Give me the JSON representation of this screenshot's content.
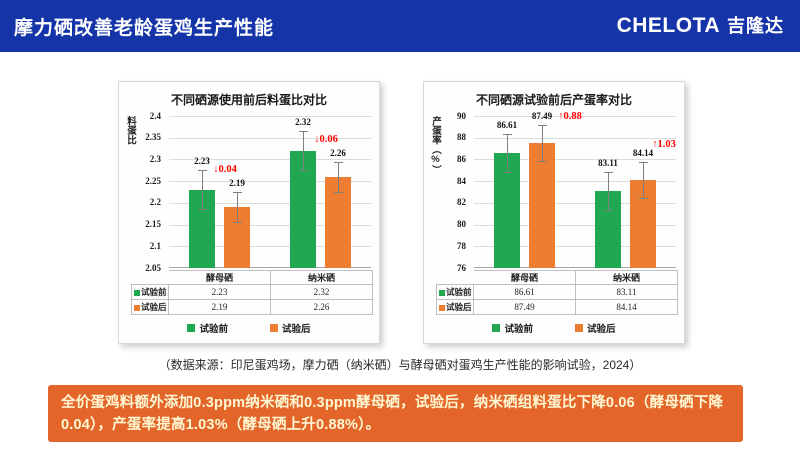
{
  "header": {
    "title": "摩力硒改善老龄蛋鸡生产性能",
    "logo_en": "CHELOTA",
    "logo_cn": "吉隆达"
  },
  "colors": {
    "header_bg": "#1434A8",
    "green": "#1FA84F",
    "orange": "#ED7D31",
    "red": "#FF0000",
    "banner_bg": "#E4652A",
    "banner_text": "#FFF8D2"
  },
  "chart_data": [
    {
      "type": "bar",
      "title": "不同硒源使用前后料蛋比对比",
      "ylabel": "料蛋比",
      "xlabel": "",
      "categories": [
        "酵母硒",
        "纳米硒"
      ],
      "series": [
        {
          "name": "试验前",
          "color": "#1FA84F",
          "values": [
            2.23,
            2.32
          ],
          "errors": [
            0.045,
            0.045
          ]
        },
        {
          "name": "试验后",
          "color": "#ED7D31",
          "values": [
            2.19,
            2.26
          ],
          "errors": [
            0.035,
            0.035
          ]
        }
      ],
      "ylim": [
        2.05,
        2.4
      ],
      "ytick_step": 0.05,
      "grid": true,
      "legend_position": "bottom",
      "annotations": [
        {
          "category_index": 0,
          "text": "↓0.04"
        },
        {
          "category_index": 1,
          "text": "↓0.06"
        }
      ]
    },
    {
      "type": "bar",
      "title": "不同硒源试验前后产蛋率对比",
      "ylabel": "产蛋率（%）",
      "xlabel": "",
      "categories": [
        "酵母硒",
        "纳米硒"
      ],
      "series": [
        {
          "name": "试验前",
          "color": "#1FA84F",
          "values": [
            86.61,
            83.11
          ],
          "errors": [
            1.75,
            1.75
          ]
        },
        {
          "name": "试验后",
          "color": "#ED7D31",
          "values": [
            87.49,
            84.14
          ],
          "errors": [
            1.65,
            1.65
          ]
        }
      ],
      "ylim": [
        76,
        90
      ],
      "ytick_step": 2,
      "grid": true,
      "legend_position": "bottom",
      "annotations": [
        {
          "category_index": 0,
          "text": "↑0.88"
        },
        {
          "category_index": 1,
          "text": "↑1.03"
        }
      ]
    }
  ],
  "source_note": "（数据来源：印尼蛋鸡场，摩力硒（纳米硒）与酵母硒对蛋鸡生产性能的影响试验，2024）",
  "banner": {
    "text": "全价蛋鸡料额外添加0.3ppm纳米硒和0.3ppm酵母硒，试验后，纳米硒组料蛋比下降0.06（酵母硒下降0.04），产蛋率提高1.03%（酵母硒上升0.88%）。"
  }
}
